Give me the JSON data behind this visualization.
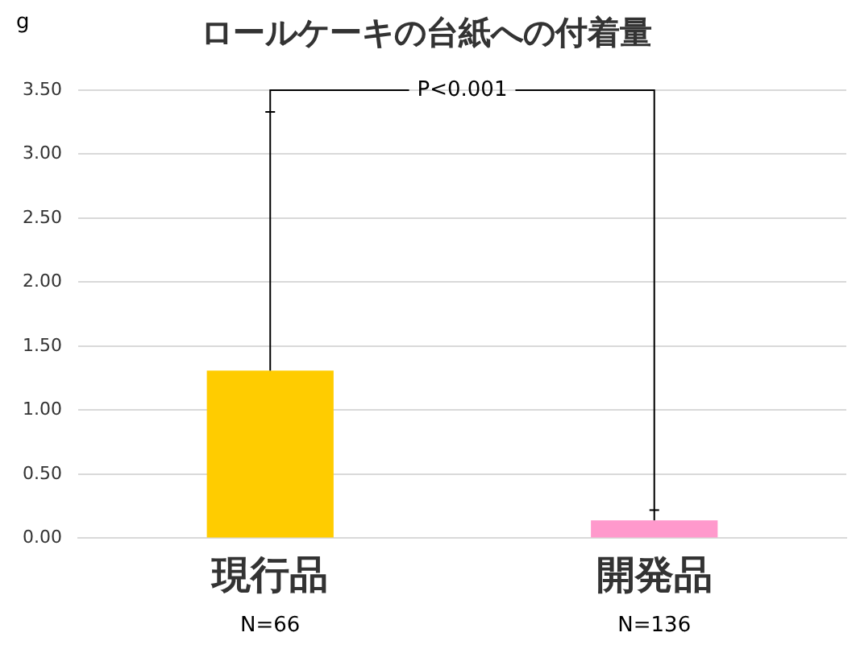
{
  "chart_data": {
    "type": "bar",
    "title": "ロールケーキの台紙への付着量",
    "ylabel": "g",
    "categories": [
      "現行品",
      "開発品"
    ],
    "values": [
      1.31,
      0.14
    ],
    "colors": [
      "#ffcc00",
      "#ff99cc"
    ],
    "errors": [
      [
        1.31,
        3.33
      ],
      [
        0.14,
        0.22
      ]
    ],
    "ylim": [
      0,
      3.5
    ],
    "yticks": [
      {
        "value": 0,
        "label": "0.00"
      },
      {
        "value": 0.5,
        "label": "0.50"
      },
      {
        "value": 1,
        "label": "1.00"
      },
      {
        "value": 1.5,
        "label": "1.50"
      },
      {
        "value": 2,
        "label": "2.00"
      },
      {
        "value": 2.5,
        "label": "2.50"
      },
      {
        "value": 3,
        "label": "3.00"
      },
      {
        "value": 3.5,
        "label": "3.50"
      }
    ],
    "grid": "y",
    "annotations": [
      "N=66",
      "N=136",
      {
        "text": "P<0.001",
        "x": "現行品",
        "y": 3.33
      }
    ]
  }
}
